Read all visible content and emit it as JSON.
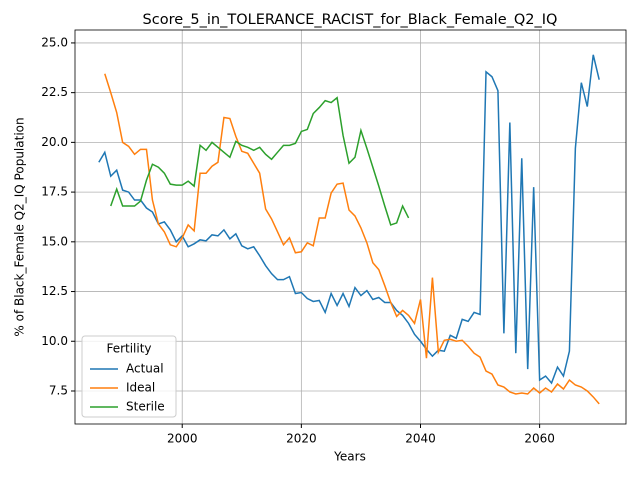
{
  "chart_data": {
    "type": "line",
    "title": "Score_5_in_TOLERANCE_RACIST_for_Black_Female_Q2_IQ",
    "x_label": "Years",
    "y_label": "% of Black_Female Q2_IQ Population",
    "legend_title": "Fertility",
    "legend": "lower left",
    "grid": true,
    "x": [
      1986,
      1987,
      1988,
      1989,
      1990,
      1991,
      1992,
      1993,
      1994,
      1995,
      1996,
      1997,
      1998,
      1999,
      2000,
      2001,
      2002,
      2003,
      2004,
      2005,
      2006,
      2007,
      2008,
      2009,
      2010,
      2011,
      2012,
      2013,
      2014,
      2015,
      2016,
      2017,
      2018,
      2019,
      2020,
      2021,
      2022,
      2023,
      2024,
      2025,
      2026,
      2027,
      2028,
      2029,
      2030,
      2031,
      2032,
      2033,
      2034,
      2035,
      2036,
      2037,
      2038,
      2039,
      2040,
      2041,
      2042,
      2043,
      2044,
      2045,
      2046,
      2047,
      2048,
      2049,
      2050,
      2051,
      2052,
      2053,
      2054,
      2055,
      2056,
      2057,
      2058,
      2059,
      2060,
      2061,
      2062,
      2063,
      2064,
      2065,
      2066,
      2067,
      2068,
      2069,
      2070
    ],
    "xlim": [
      1982,
      2074.5
    ],
    "xticks": [
      2000,
      2020,
      2040,
      2060
    ],
    "ylim": [
      5.84,
      25.65
    ],
    "yticks": [
      7.5,
      {
        "value": 10,
        "label": "10.0"
      },
      12.5,
      {
        "value": 15,
        "label": "15.0"
      },
      17.5,
      {
        "value": 20,
        "label": "20.0"
      },
      22.5,
      {
        "value": 25,
        "label": "25.0"
      }
    ],
    "series": [
      {
        "name": "Actual",
        "color": "#1f77b4",
        "values": [
          19.0,
          19.5,
          18.3,
          18.6,
          17.6,
          17.5,
          17.1,
          17.1,
          16.7,
          16.5,
          15.9,
          16.0,
          15.6,
          15.0,
          15.3,
          14.75,
          14.9,
          15.1,
          15.05,
          15.35,
          15.3,
          15.6,
          15.15,
          15.4,
          14.8,
          14.65,
          14.75,
          14.3,
          13.8,
          13.4,
          13.1,
          13.1,
          13.25,
          12.4,
          12.45,
          12.15,
          12.0,
          12.05,
          11.45,
          12.4,
          11.8,
          12.4,
          11.75,
          12.7,
          12.3,
          12.55,
          12.1,
          12.2,
          11.95,
          11.95,
          11.55,
          11.3,
          10.9,
          10.35,
          10.0,
          9.6,
          9.25,
          9.55,
          9.5,
          10.3,
          10.15,
          11.1,
          11.0,
          11.45,
          11.35,
          23.55,
          23.3,
          22.6,
          10.4,
          21.0,
          9.4,
          19.2,
          8.6,
          17.75,
          8.05,
          8.25,
          7.9,
          8.7,
          8.25,
          9.5,
          19.7,
          23.0,
          21.8,
          24.4,
          23.15
        ]
      },
      {
        "name": "Ideal",
        "color": "#ff7f0e",
        "values": [
          null,
          23.45,
          22.5,
          21.5,
          20.0,
          19.8,
          19.4,
          19.65,
          19.65,
          17.1,
          15.9,
          15.5,
          14.85,
          14.75,
          15.2,
          15.85,
          15.55,
          18.45,
          18.45,
          18.8,
          19.0,
          21.25,
          21.2,
          20.3,
          19.55,
          19.45,
          18.95,
          18.45,
          16.65,
          16.15,
          15.5,
          14.85,
          15.2,
          14.45,
          14.5,
          14.95,
          14.8,
          16.2,
          16.2,
          17.45,
          17.9,
          17.95,
          16.6,
          16.3,
          15.7,
          14.95,
          13.95,
          13.6,
          12.8,
          11.95,
          11.25,
          11.55,
          11.3,
          10.9,
          12.1,
          9.15,
          13.2,
          9.45,
          10.05,
          10.1,
          10.0,
          10.05,
          9.75,
          9.4,
          9.2,
          8.5,
          8.35,
          7.8,
          7.7,
          7.45,
          7.35,
          7.4,
          7.35,
          7.65,
          7.4,
          7.65,
          7.45,
          7.85,
          7.6,
          8.05,
          7.8,
          7.7,
          7.5,
          7.2,
          6.85
        ]
      },
      {
        "name": "Sterile",
        "color": "#2ca02c",
        "values": [
          null,
          null,
          16.8,
          17.65,
          16.8,
          16.8,
          16.8,
          17.05,
          18.1,
          18.9,
          18.75,
          18.45,
          17.9,
          17.85,
          17.85,
          18.05,
          17.8,
          19.85,
          19.6,
          20.0,
          19.75,
          19.5,
          19.25,
          20.05,
          19.85,
          19.75,
          19.6,
          19.75,
          19.4,
          19.15,
          19.5,
          19.85,
          19.85,
          19.95,
          20.55,
          20.65,
          21.45,
          21.75,
          22.1,
          22.0,
          22.25,
          20.35,
          18.95,
          19.25,
          20.6,
          19.7,
          18.75,
          17.8,
          16.8,
          15.85,
          15.95,
          16.8,
          16.2,
          null,
          null,
          null,
          null,
          null,
          null,
          null,
          null,
          null,
          null,
          null,
          null,
          null,
          null,
          null,
          null,
          null,
          null,
          null,
          null,
          null,
          null,
          null,
          null,
          null,
          null,
          null,
          null,
          null,
          null,
          null,
          null
        ]
      }
    ]
  }
}
